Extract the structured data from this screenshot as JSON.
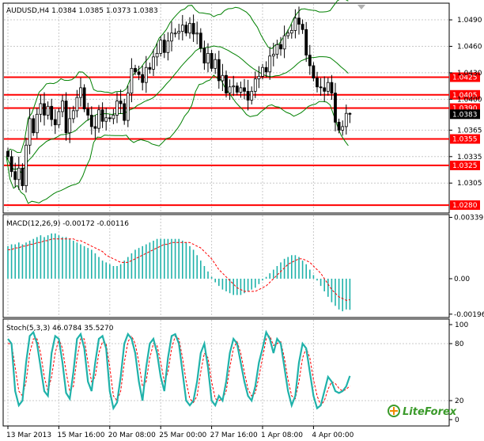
{
  "window": {
    "main_header": "AUDUSD,H4  1.0384 1.0385 1.0373 1.0383",
    "macd_header": "MACD(12,26,9) -0.00172 -0.00116",
    "stoch_header": "Stoch(5,3,3) 46.0784 35.5270",
    "logo_text": "LiteForex"
  },
  "colors": {
    "background": "#ffffff",
    "grid": "#c8c8c8",
    "bull_candle": "#ffffff",
    "bear_candle": "#000000",
    "bollinger": "#008000",
    "level_line": "#ff0000",
    "current_price_tag": "#000000",
    "macd_hist": "#20b2aa",
    "macd_signal": "#ff0000",
    "stoch_main": "#20b2aa",
    "stoch_signal": "#ff0000",
    "logo_green": "#3a9a2a",
    "logo_orange": "#f08a00"
  },
  "chart_data": [
    {
      "type": "candlestick",
      "symbol": "AUDUSD",
      "timeframe": "H4",
      "last_bar": {
        "open": 1.0384,
        "high": 1.0385,
        "low": 1.0373,
        "close": 1.0383
      },
      "current_price": 1.0383,
      "ylim": [
        1.0272,
        1.0508
      ],
      "y_ticks": [
        1.049,
        1.046,
        1.043,
        1.04,
        1.0365,
        1.0335,
        1.0305
      ],
      "y_tick_labels": [
        "1.0490",
        "1.0460",
        "1.0430",
        "1.0400",
        "1.0365",
        "1.0335",
        "1.0305"
      ],
      "levels": [
        1.0425,
        1.0405,
        1.039,
        1.0355,
        1.0325,
        1.028
      ],
      "level_labels": [
        "1.0425",
        "1.0405",
        "1.0390",
        "1.0355",
        "1.0325",
        "1.0280"
      ],
      "x_labels": [
        "13 Mar 2013",
        "15 Mar 16:00",
        "20 Mar 08:00",
        "25 Mar 00:00",
        "27 Mar 16:00",
        "1 Apr 08:00",
        "4 Apr 00:00"
      ],
      "x_label_bar_index": [
        0,
        14,
        28,
        42,
        56,
        70,
        84
      ],
      "close": [
        1.0335,
        1.0318,
        1.0309,
        1.0322,
        1.0302,
        1.0348,
        1.0378,
        1.0362,
        1.0383,
        1.0395,
        1.0382,
        1.0392,
        1.0377,
        1.0371,
        1.0386,
        1.0398,
        1.0362,
        1.0378,
        1.0387,
        1.0402,
        1.0413,
        1.0389,
        1.0382,
        1.0369,
        1.0367,
        1.0388,
        1.0375,
        1.0379,
        1.0378,
        1.0382,
        1.0398,
        1.0395,
        1.0376,
        1.0407,
        1.0435,
        1.0431,
        1.0428,
        1.0419,
        1.0436,
        1.0434,
        1.0448,
        1.0452,
        1.0467,
        1.0453,
        1.0466,
        1.0475,
        1.0475,
        1.0477,
        1.0484,
        1.0475,
        1.0486,
        1.0474,
        1.0475,
        1.0458,
        1.0441,
        1.0452,
        1.0435,
        1.0445,
        1.0421,
        1.0427,
        1.0407,
        1.0414,
        1.0415,
        1.0408,
        1.0413,
        1.0409,
        1.0399,
        1.0409,
        1.0423,
        1.0426,
        1.0436,
        1.0431,
        1.0449,
        1.0451,
        1.0462,
        1.0457,
        1.0472,
        1.0475,
        1.0478,
        1.0492,
        1.0485,
        1.0479,
        1.045,
        1.0438,
        1.0424,
        1.0414,
        1.0413,
        1.0409,
        1.0419,
        1.0407,
        1.0374,
        1.0365,
        1.0369,
        1.0384,
        1.0383
      ],
      "bollinger": {
        "period": 20,
        "deviation": 2
      }
    },
    {
      "type": "histogram",
      "name": "MACD(12,26,9)",
      "values_last": [
        -0.00172,
        -0.00116
      ],
      "y_tick_labels": [
        "0.00339",
        "0.00",
        "-0.00196"
      ],
      "ylim": [
        -0.0021,
        0.0035
      ],
      "histogram": [
        0.0018,
        0.0019,
        0.0019,
        0.002,
        0.0019,
        0.002,
        0.0021,
        0.0022,
        0.0023,
        0.0024,
        0.0023,
        0.0024,
        0.0025,
        0.0025,
        0.0024,
        0.0023,
        0.0023,
        0.0022,
        0.0021,
        0.002,
        0.0019,
        0.0018,
        0.0017,
        0.0016,
        0.0014,
        0.0012,
        0.001,
        0.0009,
        0.0008,
        0.0007,
        0.0007,
        0.0008,
        0.001,
        0.0012,
        0.0014,
        0.0016,
        0.0017,
        0.0018,
        0.0019,
        0.002,
        0.0021,
        0.0022,
        0.0022,
        0.0022,
        0.0022,
        0.0022,
        0.0022,
        0.0022,
        0.0021,
        0.002,
        0.0018,
        0.0016,
        0.0013,
        0.001,
        0.0007,
        0.0004,
        0.0001,
        -0.0002,
        -0.0004,
        -0.0006,
        -0.0007,
        -0.0008,
        -0.0009,
        -0.0009,
        -0.0009,
        -0.0008,
        -0.0007,
        -0.0006,
        -0.0005,
        -0.0003,
        -0.0001,
        0.0001,
        0.0003,
        0.0005,
        0.0007,
        0.0009,
        0.0011,
        0.0012,
        0.0013,
        0.0013,
        0.0012,
        0.001,
        0.0008,
        0.0005,
        0.0002,
        -0.0001,
        -0.0004,
        -0.0007,
        -0.001,
        -0.0013,
        -0.0015,
        -0.0017,
        -0.0018,
        -0.0017,
        -0.00172
      ],
      "signal": [
        0.0016,
        0.0016,
        0.0017,
        0.0017,
        0.0018,
        0.0018,
        0.0019,
        0.0019,
        0.002,
        0.002,
        0.0021,
        0.0021,
        0.0022,
        0.0022,
        0.0022,
        0.0022,
        0.0022,
        0.0022,
        0.0022,
        0.0021,
        0.0021,
        0.002,
        0.0019,
        0.0018,
        0.0017,
        0.0016,
        0.0015,
        0.0013,
        0.0012,
        0.0011,
        0.001,
        0.0009,
        0.0009,
        0.0009,
        0.001,
        0.0011,
        0.0012,
        0.0013,
        0.0014,
        0.0015,
        0.0016,
        0.0017,
        0.0018,
        0.0019,
        0.0019,
        0.002,
        0.002,
        0.002,
        0.002,
        0.002,
        0.002,
        0.0019,
        0.0018,
        0.0017,
        0.0015,
        0.0013,
        0.0011,
        0.0008,
        0.0005,
        0.0003,
        0.0001,
        -0.0001,
        -0.0003,
        -0.0005,
        -0.0006,
        -0.0007,
        -0.0007,
        -0.0007,
        -0.0007,
        -0.0006,
        -0.0005,
        -0.0004,
        -0.0002,
        0.0,
        0.0002,
        0.0004,
        0.0006,
        0.0008,
        0.0009,
        0.001,
        0.0011,
        0.0011,
        0.001,
        0.0009,
        0.0007,
        0.0005,
        0.0003,
        0.0,
        -0.0003,
        -0.0006,
        -0.0008,
        -0.001,
        -0.0011,
        -0.0012,
        -0.00116
      ]
    },
    {
      "type": "line",
      "name": "Stoch(5,3,3)",
      "values_last": [
        46.0784,
        35.527
      ],
      "y_tick_labels": [
        "100",
        "80",
        "20",
        "0"
      ],
      "ylim": [
        0,
        100
      ],
      "main": [
        85,
        80,
        30,
        15,
        20,
        60,
        88,
        92,
        80,
        55,
        30,
        25,
        70,
        88,
        85,
        60,
        28,
        22,
        50,
        85,
        90,
        75,
        40,
        30,
        60,
        85,
        88,
        75,
        30,
        12,
        18,
        45,
        80,
        90,
        85,
        70,
        40,
        20,
        55,
        80,
        85,
        70,
        45,
        30,
        65,
        88,
        90,
        80,
        50,
        20,
        15,
        20,
        40,
        70,
        80,
        55,
        20,
        15,
        25,
        20,
        40,
        70,
        85,
        80,
        60,
        40,
        25,
        20,
        35,
        60,
        75,
        92,
        85,
        70,
        85,
        80,
        55,
        30,
        15,
        25,
        60,
        80,
        75,
        50,
        25,
        12,
        15,
        30,
        45,
        40,
        30,
        28,
        30,
        35,
        46
      ],
      "signal": [
        80,
        80,
        55,
        30,
        25,
        40,
        70,
        85,
        85,
        70,
        45,
        30,
        45,
        70,
        85,
        75,
        50,
        30,
        35,
        65,
        85,
        85,
        60,
        40,
        45,
        70,
        82,
        80,
        55,
        25,
        20,
        30,
        60,
        82,
        88,
        80,
        60,
        35,
        40,
        65,
        80,
        78,
        60,
        40,
        50,
        75,
        88,
        85,
        65,
        40,
        22,
        18,
        25,
        50,
        70,
        65,
        40,
        22,
        20,
        22,
        30,
        55,
        75,
        82,
        70,
        50,
        32,
        25,
        28,
        45,
        65,
        85,
        88,
        78,
        80,
        82,
        65,
        42,
        25,
        22,
        40,
        65,
        75,
        65,
        42,
        25,
        15,
        20,
        32,
        40,
        38,
        33,
        30,
        32,
        35.5
      ]
    }
  ]
}
